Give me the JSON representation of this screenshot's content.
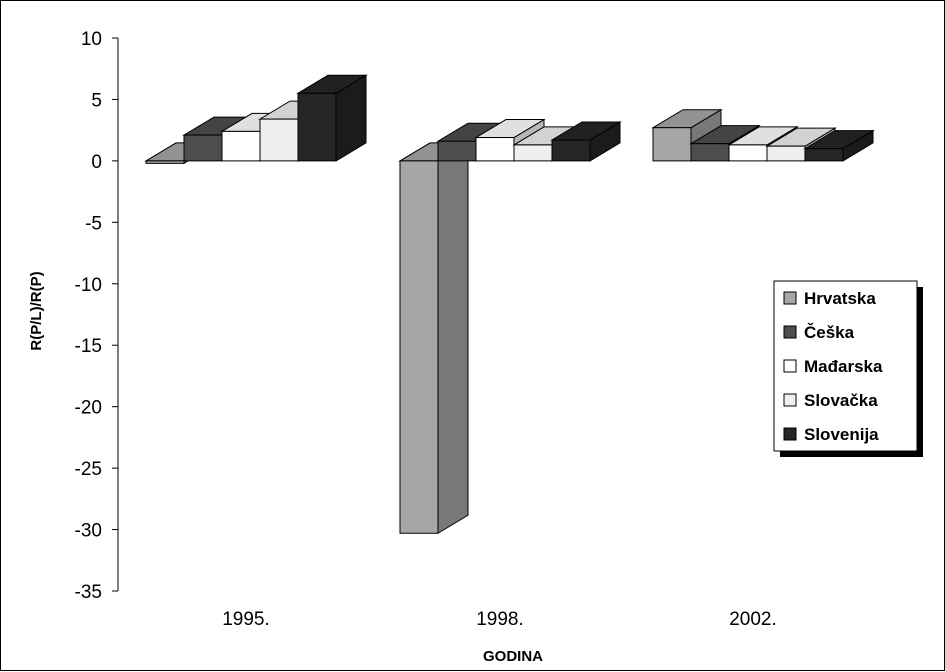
{
  "chart_data": {
    "type": "bar",
    "style": "3d-clustered-column",
    "title": "",
    "xlabel": "GODINA",
    "ylabel": "R(P/L)/R(P)",
    "ylim": [
      -35,
      10
    ],
    "yticks": [
      10,
      5,
      0,
      -5,
      -10,
      -15,
      -20,
      -25,
      -30,
      -35
    ],
    "grid": false,
    "legend_position": "right",
    "categories": [
      "1995.",
      "1998.",
      "2002."
    ],
    "series": [
      {
        "name": "Hrvatska",
        "color": "#a6a6a6",
        "values": [
          -0.2,
          -30.3,
          2.7
        ]
      },
      {
        "name": "Češka",
        "color": "#4d4d4d",
        "values": [
          2.1,
          1.6,
          1.4
        ]
      },
      {
        "name": "Mađarska",
        "color": "#ffffff",
        "values": [
          2.4,
          1.9,
          1.3
        ]
      },
      {
        "name": "Slovačka",
        "color": "#efefef",
        "values": [
          3.4,
          1.3,
          1.2
        ]
      },
      {
        "name": "Slovenija",
        "color": "#262626",
        "values": [
          5.5,
          1.7,
          1.0
        ]
      }
    ]
  }
}
